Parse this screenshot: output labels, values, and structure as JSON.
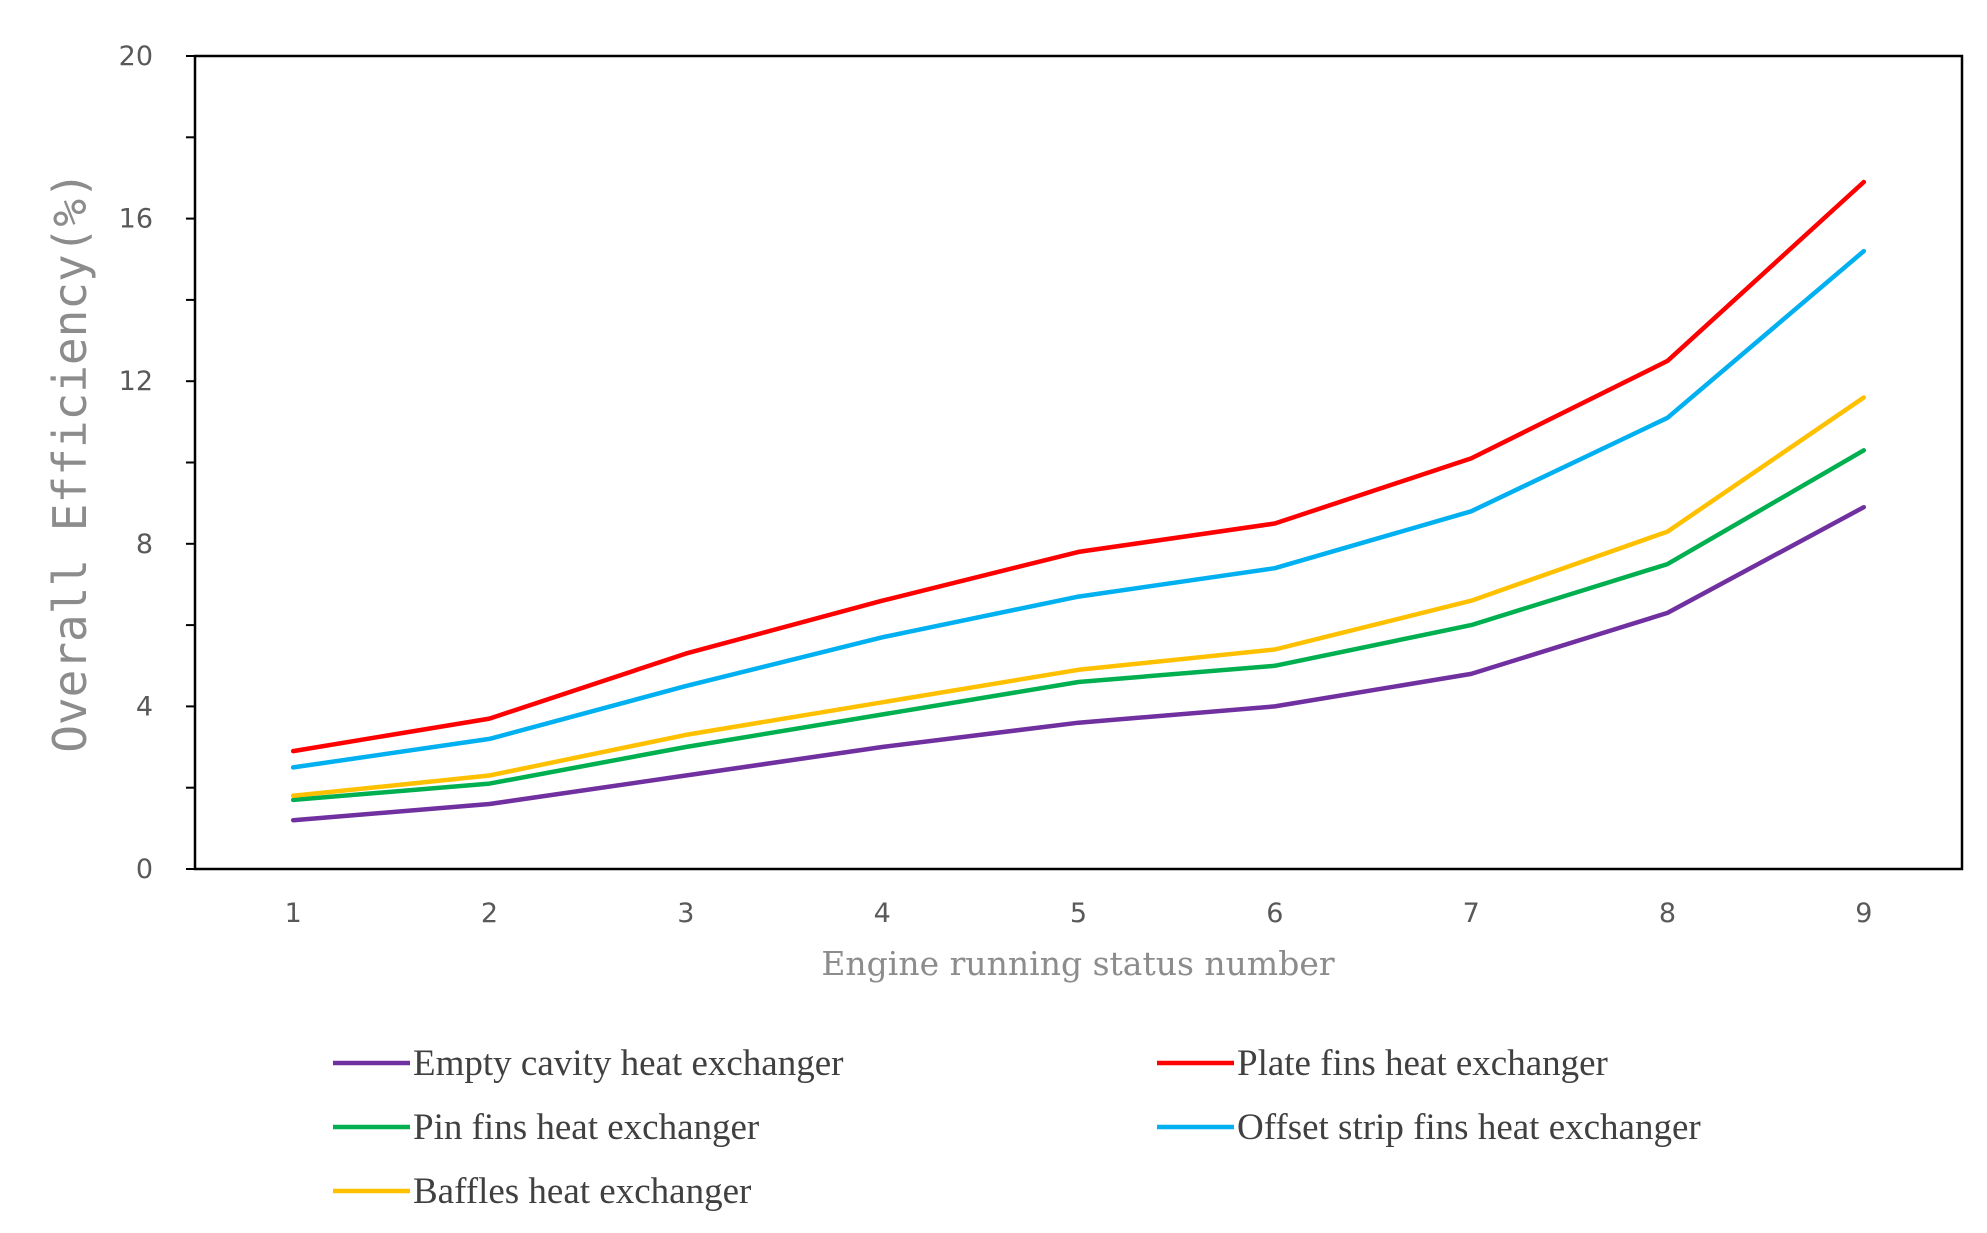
{
  "chart_data": {
    "type": "line",
    "title": "",
    "xlabel": "Engine running status number",
    "ylabel": "Overall Efficiency(%)",
    "categories": [
      "1",
      "2",
      "3",
      "4",
      "5",
      "6",
      "7",
      "8",
      "9"
    ],
    "x": [
      1,
      2,
      3,
      4,
      5,
      6,
      7,
      8,
      9
    ],
    "ylim": [
      0,
      20
    ],
    "yticks": [
      0,
      4,
      8,
      12,
      16,
      20
    ],
    "y_minor_step": 2,
    "xlim": [
      0.5,
      9.5
    ],
    "grid": false,
    "legend_position": "bottom",
    "series": [
      {
        "name": "Empty cavity heat exchanger",
        "color": "#7030a0",
        "values": [
          1.2,
          1.6,
          2.3,
          3.0,
          3.6,
          4.0,
          4.8,
          6.3,
          8.9
        ]
      },
      {
        "name": "Plate fins heat exchanger",
        "color": "#ff0000",
        "values": [
          2.9,
          3.7,
          5.3,
          6.6,
          7.8,
          8.5,
          10.1,
          12.5,
          16.9
        ]
      },
      {
        "name": "Pin fins heat exchanger",
        "color": "#00b050",
        "values": [
          1.7,
          2.1,
          3.0,
          3.8,
          4.6,
          5.0,
          6.0,
          7.5,
          10.3
        ]
      },
      {
        "name": "Offset strip fins heat exchanger",
        "color": "#00b0f0",
        "values": [
          2.5,
          3.2,
          4.5,
          5.7,
          6.7,
          7.4,
          8.8,
          11.1,
          15.2
        ]
      },
      {
        "name": "Baffles heat exchanger",
        "color": "#ffc000",
        "values": [
          1.8,
          2.3,
          3.3,
          4.1,
          4.9,
          5.4,
          6.6,
          8.3,
          11.6
        ]
      }
    ]
  }
}
